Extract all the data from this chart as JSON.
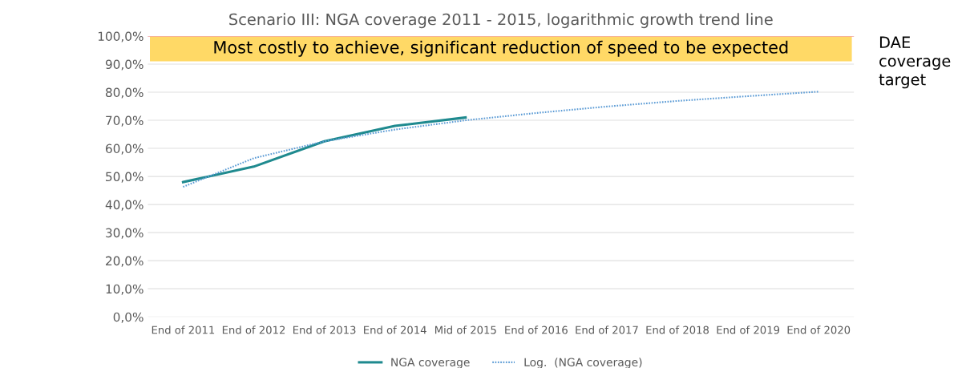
{
  "chart_data": {
    "type": "line",
    "title": "Scenario III: NGA coverage 2011 - 2015, logarithmic growth trend line",
    "categories": [
      "End of 2011",
      "End of 2012",
      "End of 2013",
      "End of 2014",
      "Mid of 2015",
      "End of 2016",
      "End of 2017",
      "End of 2018",
      "End of 2019",
      "End of 2020"
    ],
    "series": [
      {
        "name": "NGA coverage",
        "color": "#1f8a8f",
        "values": [
          48.0,
          53.5,
          62.5,
          68.0,
          71.0,
          null,
          null,
          null,
          null,
          null
        ],
        "line_style": "solid"
      },
      {
        "name": "Log.  (NGA coverage)",
        "color": "#5b9bd5",
        "values": [
          46.3,
          56.5,
          62.5,
          66.7,
          70.0,
          72.6,
          74.9,
          76.9,
          78.6,
          80.2
        ],
        "line_style": "dotted"
      }
    ],
    "ylim": [
      0,
      100
    ],
    "yticks": [
      {
        "value": 0,
        "label": "0,0%"
      },
      {
        "value": 10,
        "label": "10,0%"
      },
      {
        "value": 20,
        "label": "20,0%"
      },
      {
        "value": 30,
        "label": "30,0%"
      },
      {
        "value": 40,
        "label": "40,0%"
      },
      {
        "value": 50,
        "label": "50,0%"
      },
      {
        "value": 60,
        "label": "60,0%"
      },
      {
        "value": 70,
        "label": "70,0%"
      },
      {
        "value": 80,
        "label": "80,0%"
      },
      {
        "value": 90,
        "label": "90,0%"
      },
      {
        "value": 100,
        "label": "100,0%"
      }
    ],
    "grid": "y",
    "legend": "bottom",
    "marker": "none",
    "bands": [
      {
        "axis": "y",
        "from": 91,
        "to": 100,
        "label": "Most costly to achieve, significant reduction of speed to be expected",
        "color": "#ffd966"
      }
    ],
    "ref_lines": [
      {
        "axis": "y",
        "value": 100,
        "label": "DAE\ncoverage\ntarget",
        "color": "#f4a6a6"
      }
    ]
  }
}
